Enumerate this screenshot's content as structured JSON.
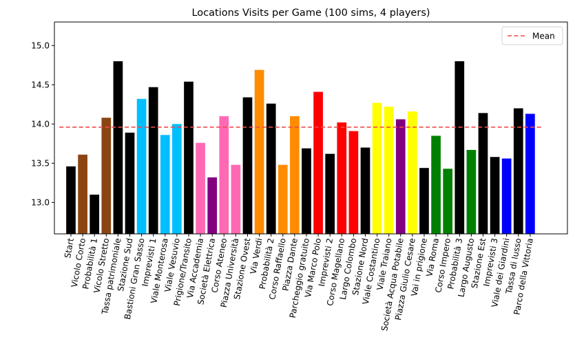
{
  "chart_data": {
    "type": "bar",
    "title": "Locations Visits per Game (100 sims, 4 players)",
    "xlabel": "",
    "ylabel": "",
    "ylim": [
      12.6,
      15.3
    ],
    "yticks": [
      "13.0",
      "13.5",
      "14.0",
      "14.5",
      "15.0"
    ],
    "grid": false,
    "legend_position": "top-right",
    "mean": {
      "name": "Mean",
      "value": 13.96,
      "color": "#ef4a4a"
    },
    "categories": [
      "Start",
      "Vicolo Corto",
      "Probabilità 1",
      "Vicolo Stretto",
      "Tassa patrimoniale",
      "Stazione Sud",
      "Bastioni Gran Sasso",
      "Imprevisti 1",
      "Viale Monterosa",
      "Viale Vesuvio",
      "Prigione/Transito",
      "Via Accademia",
      "Società Elettrica",
      "Corso Ateneo",
      "Piazza Università",
      "Stazione Ovest",
      "Via Verdi",
      "Probabilità 2",
      "Corso Raffaello",
      "Piazza Dante",
      "Parcheggio gratuito",
      "Via Marco Polo",
      "Imprevisti 2",
      "Corso Magellano",
      "Largo Colombo",
      "Stazione Nord",
      "Viale Costantino",
      "Viale Traiano",
      "Società Acqua Potabile",
      "Piazza Giulio Cesare",
      "Vai in prigione",
      "Via Roma",
      "Corso Impero",
      "Probabilità 3",
      "Largo Augusto",
      "Stazione Est",
      "Imprevisti 3",
      "Viale dei Giardini",
      "Tassa di lusso",
      "Parco della Vittoria"
    ],
    "values": [
      13.46,
      13.61,
      13.1,
      14.08,
      14.8,
      13.89,
      14.32,
      14.47,
      13.86,
      14.0,
      14.54,
      13.76,
      13.32,
      14.1,
      13.48,
      14.34,
      14.69,
      14.26,
      13.48,
      14.1,
      13.69,
      14.41,
      13.62,
      14.02,
      13.91,
      13.7,
      14.27,
      14.22,
      14.06,
      14.16,
      13.44,
      13.85,
      13.43,
      14.8,
      13.67,
      14.14,
      13.58,
      13.56,
      14.2,
      14.13
    ],
    "colors": [
      "#000000",
      "#8b4513",
      "#000000",
      "#8b4513",
      "#000000",
      "#000000",
      "#00bfff",
      "#000000",
      "#00bfff",
      "#00bfff",
      "#000000",
      "#ff69b4",
      "#800080",
      "#ff69b4",
      "#ff69b4",
      "#000000",
      "#ff8c00",
      "#000000",
      "#ff8c00",
      "#ff8c00",
      "#000000",
      "#ff0000",
      "#000000",
      "#ff0000",
      "#ff0000",
      "#000000",
      "#ffff00",
      "#ffff00",
      "#800080",
      "#ffff00",
      "#000000",
      "#008000",
      "#008000",
      "#000000",
      "#008000",
      "#000000",
      "#000000",
      "#0000ff",
      "#000000",
      "#0000ff"
    ]
  }
}
